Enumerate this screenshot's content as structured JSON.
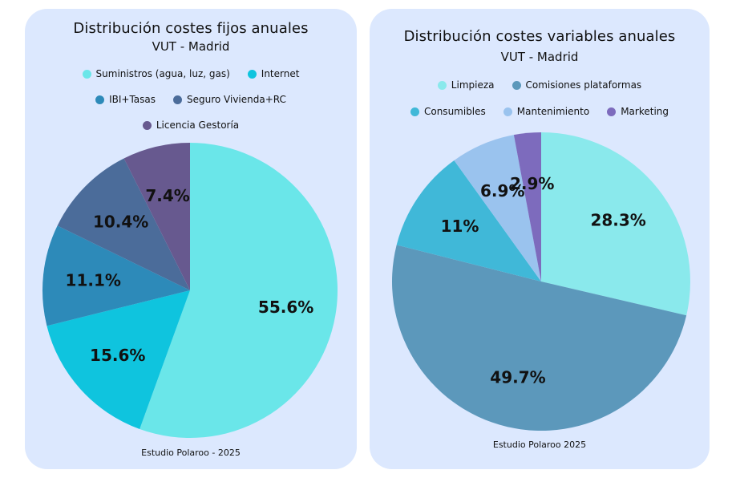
{
  "chart_data": [
    {
      "type": "pie",
      "title": "Distribución costes fijos anuales",
      "subtitle": "VUT - Madrid",
      "caption": "Estudio Polaroo - 2025",
      "legend_rows": [
        [
          0,
          1
        ],
        [
          2,
          3
        ],
        [
          4
        ]
      ],
      "slices": [
        {
          "label": "Suministros (agua, luz, gas)",
          "value": 55.6,
          "display": "55.6%",
          "color": "#6ae6e9"
        },
        {
          "label": "Internet",
          "value": 15.6,
          "display": "15.6%",
          "color": "#0fc4de"
        },
        {
          "label": "IBI+Tasas",
          "value": 11.1,
          "display": "11.1%",
          "color": "#2d8ab9"
        },
        {
          "label": "Seguro Vivienda+RC",
          "value": 10.4,
          "display": "10.4%",
          "color": "#4b6c9a"
        },
        {
          "label": "Licencia Gestoría",
          "value": 7.4,
          "display": "7.4%",
          "color": "#67598f"
        }
      ]
    },
    {
      "type": "pie",
      "title": "Distribución costes variables anuales",
      "subtitle": "VUT - Madrid",
      "caption": "Estudio Polaroo 2025",
      "legend_rows": [
        [
          0,
          1
        ],
        [
          2,
          3,
          4
        ]
      ],
      "slices": [
        {
          "label": "Limpieza",
          "value": 28.3,
          "display": "28.3%",
          "color": "#8ae9ec"
        },
        {
          "label": "Comisiones plataformas",
          "value": 49.7,
          "display": "49.7%",
          "color": "#5c98bb"
        },
        {
          "label": "Consumibles",
          "value": 11,
          "display": "11%",
          "color": "#40b8d8"
        },
        {
          "label": "Mantenimiento",
          "value": 6.9,
          "display": "6.9%",
          "color": "#9ac3ee"
        },
        {
          "label": "Marketing",
          "value": 2.9,
          "display": "2.9%",
          "color": "#7d6bbd"
        }
      ]
    }
  ]
}
